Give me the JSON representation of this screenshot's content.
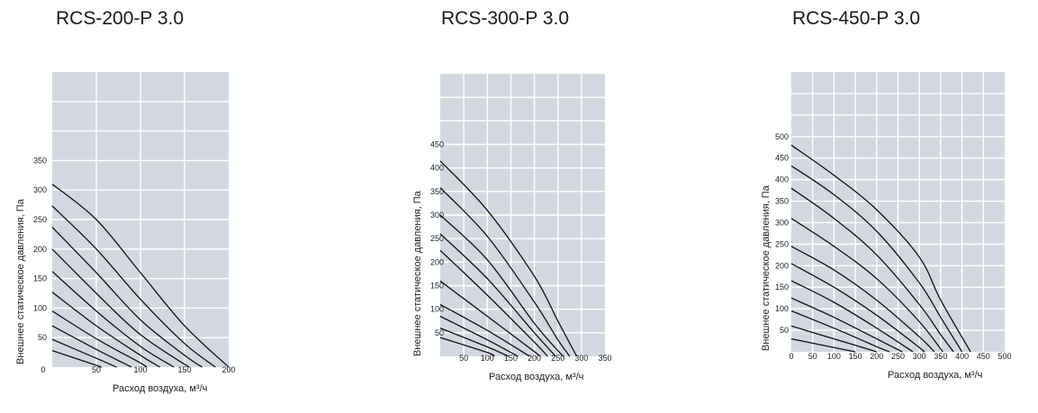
{
  "chart_data": [
    {
      "type": "line",
      "title": "RCS-200-P 3.0",
      "xlabel": "Расход воздуха, м³/ч",
      "ylabel": "Внешнее статическое давления, Па",
      "xlim": [
        0,
        200
      ],
      "ylim": [
        0,
        500
      ],
      "xticks": [
        0,
        50,
        100,
        150,
        200
      ],
      "xtick_labels": [
        "0",
        "50",
        "100",
        "150",
        "200"
      ],
      "yticks": [
        50,
        100,
        150,
        200,
        250,
        300,
        350
      ],
      "ytick_labels": [
        "50",
        "100",
        "150",
        "200",
        "250",
        "300",
        "350"
      ],
      "grid": true,
      "series": [
        {
          "x": [
            0,
            50,
            100,
            150,
            200
          ],
          "y": [
            310,
            250,
            160,
            70,
            0
          ]
        },
        {
          "x": [
            0,
            50,
            100,
            150,
            185
          ],
          "y": [
            273,
            200,
            115,
            40,
            0
          ]
        },
        {
          "x": [
            0,
            50,
            100,
            150,
            170
          ],
          "y": [
            237,
            160,
            80,
            20,
            0
          ]
        },
        {
          "x": [
            0,
            50,
            100,
            155
          ],
          "y": [
            200,
            125,
            55,
            0
          ]
        },
        {
          "x": [
            0,
            50,
            100,
            138
          ],
          "y": [
            162,
            95,
            35,
            0
          ]
        },
        {
          "x": [
            0,
            50,
            100,
            122
          ],
          "y": [
            127,
            70,
            20,
            0
          ]
        },
        {
          "x": [
            0,
            50,
            100,
            107
          ],
          "y": [
            95,
            48,
            7,
            0
          ]
        },
        {
          "x": [
            0,
            50,
            90
          ],
          "y": [
            70,
            30,
            0
          ]
        },
        {
          "x": [
            0,
            50,
            73
          ],
          "y": [
            47,
            15,
            0
          ]
        },
        {
          "x": [
            0,
            50,
            55
          ],
          "y": [
            28,
            3,
            0
          ]
        }
      ]
    },
    {
      "type": "line",
      "title": "RCS-300-P 3.0",
      "xlabel": "Расход воздуха, м³/ч",
      "ylabel": "Внешнее статическое давления, Па",
      "xlim": [
        0,
        350
      ],
      "ylim": [
        0,
        600
      ],
      "xticks": [
        50,
        100,
        150,
        200,
        250,
        300,
        350
      ],
      "xtick_labels": [
        "50",
        "100",
        "150",
        "200",
        "250",
        "300",
        "350"
      ],
      "yticks": [
        50,
        100,
        150,
        200,
        250,
        300,
        350,
        400,
        450
      ],
      "ytick_labels": [
        "50",
        "100",
        "150",
        "200",
        "250",
        "300",
        "350",
        "400",
        "450"
      ],
      "grid": true,
      "series": [
        {
          "x": [
            0,
            100,
            200,
            250,
            290
          ],
          "y": [
            415,
            310,
            170,
            75,
            0
          ]
        },
        {
          "x": [
            0,
            100,
            200,
            250,
            275
          ],
          "y": [
            358,
            255,
            115,
            35,
            0
          ]
        },
        {
          "x": [
            0,
            100,
            200,
            250,
            262
          ],
          "y": [
            300,
            205,
            70,
            12,
            0
          ]
        },
        {
          "x": [
            0,
            100,
            200,
            245
          ],
          "y": [
            260,
            165,
            50,
            0
          ]
        },
        {
          "x": [
            0,
            100,
            200,
            228
          ],
          "y": [
            225,
            130,
            30,
            0
          ]
        },
        {
          "x": [
            0,
            100,
            200,
            212
          ],
          "y": [
            160,
            85,
            10,
            0
          ]
        },
        {
          "x": [
            0,
            100,
            190
          ],
          "y": [
            110,
            55,
            0
          ]
        },
        {
          "x": [
            0,
            100,
            165
          ],
          "y": [
            85,
            35,
            0
          ]
        },
        {
          "x": [
            0,
            100,
            145
          ],
          "y": [
            60,
            20,
            0
          ]
        },
        {
          "x": [
            0,
            100,
            115
          ],
          "y": [
            40,
            8,
            0
          ]
        }
      ]
    },
    {
      "type": "line",
      "title": "RCS-450-P 3.0",
      "xlabel": "Расход воздуха, м³/ч",
      "ylabel": "Внешнее статическое давления, Па",
      "xlim": [
        0,
        500
      ],
      "ylim": [
        0,
        650
      ],
      "xticks": [
        0,
        50,
        100,
        150,
        200,
        250,
        300,
        350,
        400,
        450,
        500
      ],
      "xtick_labels": [
        "0",
        "50",
        "100",
        "150",
        "200",
        "250",
        "300",
        "350",
        "400",
        "450",
        "500"
      ],
      "yticks": [
        50,
        100,
        150,
        200,
        250,
        300,
        350,
        400,
        450,
        500
      ],
      "ytick_labels": [
        "50",
        "100",
        "150",
        "200",
        "250",
        "300",
        "350",
        "400",
        "450",
        "500"
      ],
      "grid": true,
      "series": [
        {
          "x": [
            0,
            100,
            200,
            300,
            350,
            420
          ],
          "y": [
            480,
            410,
            330,
            220,
            120,
            0
          ]
        },
        {
          "x": [
            0,
            100,
            200,
            300,
            350,
            400
          ],
          "y": [
            432,
            365,
            280,
            160,
            80,
            0
          ]
        },
        {
          "x": [
            0,
            100,
            200,
            300,
            350,
            380
          ],
          "y": [
            380,
            310,
            225,
            110,
            40,
            0
          ]
        },
        {
          "x": [
            0,
            100,
            200,
            300,
            355
          ],
          "y": [
            310,
            245,
            170,
            70,
            0
          ]
        },
        {
          "x": [
            0,
            100,
            200,
            300,
            335
          ],
          "y": [
            245,
            190,
            120,
            35,
            0
          ]
        },
        {
          "x": [
            0,
            100,
            200,
            300,
            310
          ],
          "y": [
            205,
            150,
            85,
            10,
            0
          ]
        },
        {
          "x": [
            0,
            100,
            200,
            285
          ],
          "y": [
            165,
            115,
            55,
            0
          ]
        },
        {
          "x": [
            0,
            100,
            200,
            260
          ],
          "y": [
            125,
            80,
            30,
            0
          ]
        },
        {
          "x": [
            0,
            100,
            200,
            230
          ],
          "y": [
            95,
            55,
            12,
            0
          ]
        },
        {
          "x": [
            0,
            100,
            200
          ],
          "y": [
            60,
            30,
            0
          ]
        },
        {
          "x": [
            0,
            100,
            150
          ],
          "y": [
            30,
            10,
            0
          ]
        }
      ]
    }
  ]
}
